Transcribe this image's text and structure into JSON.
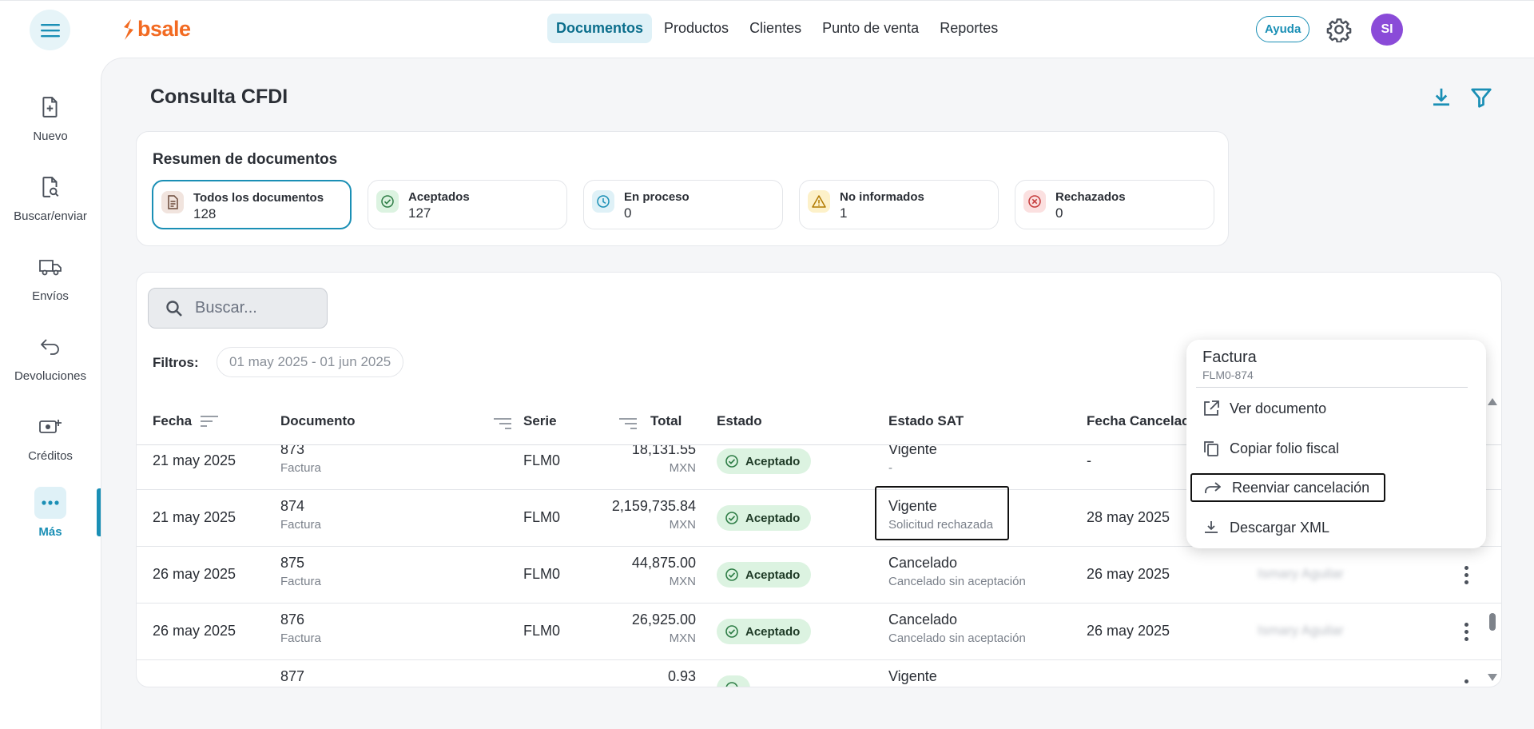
{
  "brand": {
    "name": "bsale",
    "accent": "#f26a21"
  },
  "topnav": {
    "items": [
      {
        "label": "Documentos",
        "active": true
      },
      {
        "label": "Productos"
      },
      {
        "label": "Clientes"
      },
      {
        "label": "Punto de venta"
      },
      {
        "label": "Reportes"
      }
    ],
    "help_label": "Ayuda",
    "avatar_initials": "SI"
  },
  "sidebar": {
    "items": [
      {
        "label": "Nuevo",
        "icon": "file-plus-icon"
      },
      {
        "label": "Buscar/enviar",
        "icon": "file-search-icon"
      },
      {
        "label": "Envíos",
        "icon": "truck-icon"
      },
      {
        "label": "Devoluciones",
        "icon": "return-arrow-icon"
      },
      {
        "label": "Créditos",
        "icon": "cash-plus-icon"
      },
      {
        "label": "Más",
        "icon": "more-dots-icon",
        "active": true
      }
    ]
  },
  "page": {
    "title": "Consulta CFDI"
  },
  "summary": {
    "title": "Resumen de documentos",
    "stats": [
      {
        "label": "Todos los documentos",
        "count": "128",
        "icon": "document-icon",
        "active": true
      },
      {
        "label": "Aceptados",
        "count": "127",
        "icon": "check-circle-icon"
      },
      {
        "label": "En proceso",
        "count": "0",
        "icon": "clock-icon"
      },
      {
        "label": "No informados",
        "count": "1",
        "icon": "warning-icon"
      },
      {
        "label": "Rechazados",
        "count": "0",
        "icon": "x-circle-icon"
      }
    ]
  },
  "search": {
    "placeholder": "Buscar..."
  },
  "filters": {
    "label": "Filtros:",
    "date_range": "01 may 2025 - 01 jun 2025"
  },
  "table": {
    "columns": {
      "fecha": "Fecha",
      "documento": "Documento",
      "serie": "Serie",
      "total": "Total",
      "estado": "Estado",
      "estado_sat": "Estado SAT",
      "fecha_cancelacion": "Fecha Cancelac"
    },
    "rows": [
      {
        "fecha": "21 may 2025",
        "numero": "873",
        "tipo": "Factura",
        "serie": "FLM0",
        "total": "18,131.55",
        "moneda": "MXN",
        "estado": "Aceptado",
        "sat": "Vigente",
        "sat_sub": "-",
        "fecha_cancelacion": "-",
        "usuario": ""
      },
      {
        "fecha": "21 may 2025",
        "numero": "874",
        "tipo": "Factura",
        "serie": "FLM0",
        "total": "2,159,735.84",
        "moneda": "MXN",
        "estado": "Aceptado",
        "sat": "Vigente",
        "sat_sub": "Solicitud rechazada",
        "fecha_cancelacion": "28 may 2025",
        "usuario": ""
      },
      {
        "fecha": "26 may 2025",
        "numero": "875",
        "tipo": "Factura",
        "serie": "FLM0",
        "total": "44,875.00",
        "moneda": "MXN",
        "estado": "Aceptado",
        "sat": "Cancelado",
        "sat_sub": "Cancelado sin aceptación",
        "fecha_cancelacion": "26 may 2025",
        "usuario": "Ismary Aguilar"
      },
      {
        "fecha": "26 may 2025",
        "numero": "876",
        "tipo": "Factura",
        "serie": "FLM0",
        "total": "26,925.00",
        "moneda": "MXN",
        "estado": "Aceptado",
        "sat": "Cancelado",
        "sat_sub": "Cancelado sin aceptación",
        "fecha_cancelacion": "26 may 2025",
        "usuario": "Ismary Aguilar"
      },
      {
        "fecha": "",
        "numero": "877",
        "tipo": "",
        "serie": "",
        "total": "0.93",
        "moneda": "",
        "estado": "",
        "sat": "Vigente",
        "sat_sub": "",
        "fecha_cancelacion": "",
        "usuario": ""
      }
    ]
  },
  "context_menu": {
    "title": "Factura",
    "subtitle": "FLM0-874",
    "items": [
      {
        "label": "Ver documento",
        "icon": "external-link-icon"
      },
      {
        "label": "Copiar folio fiscal",
        "icon": "copy-icon"
      },
      {
        "label": "Reenviar cancelación",
        "icon": "forward-arrow-icon",
        "focused": true
      },
      {
        "label": "Descargar XML",
        "icon": "download-icon"
      }
    ]
  }
}
